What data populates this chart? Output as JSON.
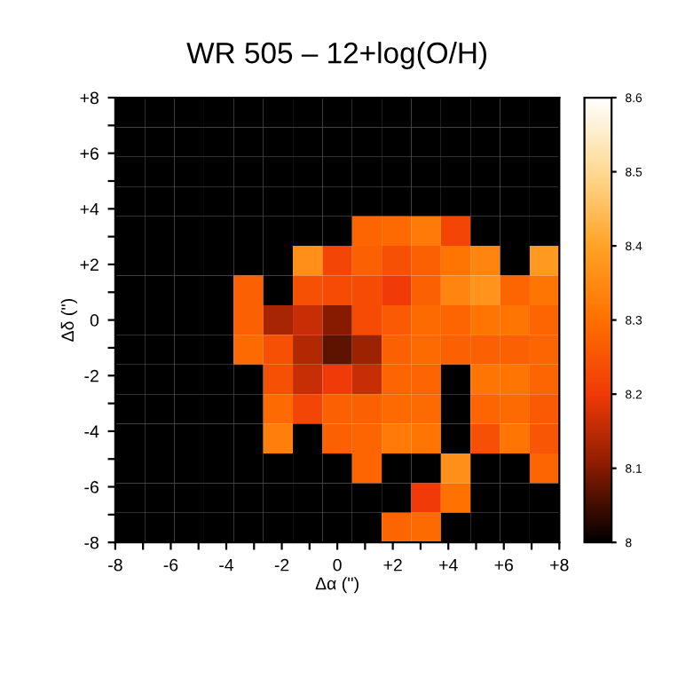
{
  "chart_data": {
    "type": "heatmap",
    "title": "WR 505 – 12+log(O/H)",
    "xlabel": "Δα ('')",
    "ylabel": "Δδ ('')",
    "xlim": [
      -8,
      8
    ],
    "ylim": [
      -8,
      8
    ],
    "xticks": [
      {
        "value": -8,
        "label": "-8"
      },
      {
        "value": -7,
        "label": null
      },
      {
        "value": -6,
        "label": "-6"
      },
      {
        "value": -5,
        "label": null
      },
      {
        "value": -4,
        "label": "-4"
      },
      {
        "value": -3,
        "label": null
      },
      {
        "value": -2,
        "label": "-2"
      },
      {
        "value": -1,
        "label": null
      },
      0,
      {
        "value": 1,
        "label": null
      },
      {
        "value": 2,
        "label": "+2"
      },
      {
        "value": 3,
        "label": null
      },
      {
        "value": 4,
        "label": "+4"
      },
      {
        "value": 5,
        "label": null
      },
      {
        "value": 6,
        "label": "+6"
      },
      {
        "value": 7,
        "label": null
      },
      {
        "value": 8,
        "label": "+8"
      }
    ],
    "yticks": [
      {
        "value": -8,
        "label": "-8"
      },
      {
        "value": -7,
        "label": null
      },
      {
        "value": -6,
        "label": "-6"
      },
      {
        "value": -5,
        "label": null
      },
      {
        "value": -4,
        "label": "-4"
      },
      {
        "value": -3,
        "label": null
      },
      {
        "value": -2,
        "label": "-2"
      },
      {
        "value": -1,
        "label": null
      },
      0,
      {
        "value": 1,
        "label": null
      },
      {
        "value": 2,
        "label": "+2"
      },
      {
        "value": 3,
        "label": null
      },
      {
        "value": 4,
        "label": "+4"
      },
      {
        "value": 5,
        "label": null
      },
      {
        "value": 6,
        "label": "+6"
      },
      {
        "value": 7,
        "label": null
      },
      {
        "value": 8,
        "label": "+8"
      }
    ],
    "clim": [
      8.0,
      8.6
    ],
    "cticks": [
      8,
      8.1,
      8.2,
      8.3,
      8.4,
      8.5,
      8.6
    ],
    "cells": [
      [
        8,
        8,
        8,
        8,
        8,
        8,
        8,
        8,
        8,
        8,
        8,
        8,
        8,
        8,
        8
      ],
      [
        8,
        8,
        8,
        8,
        8,
        8,
        8,
        8,
        8,
        8,
        8,
        8,
        8,
        8,
        8
      ],
      [
        8,
        8,
        8,
        8,
        8,
        8,
        8,
        8,
        8,
        8,
        8,
        8,
        8,
        8,
        8
      ],
      [
        8,
        8,
        8,
        8,
        8,
        8,
        8,
        8,
        8,
        8,
        8,
        8,
        8,
        8,
        8
      ],
      [
        8,
        8,
        8,
        8,
        8,
        8,
        8,
        8,
        8.28,
        8.29,
        8.32,
        8.22,
        8,
        8,
        8
      ],
      [
        8,
        8,
        8,
        8,
        8,
        8,
        8.36,
        8.22,
        8.27,
        8.24,
        8.27,
        8.31,
        8.34,
        8,
        8.38
      ],
      [
        8,
        8,
        8,
        8,
        8.27,
        8,
        8.24,
        8.23,
        8.23,
        8.2,
        8.27,
        8.34,
        8.37,
        8.28,
        8.31
      ],
      [
        8,
        8,
        8,
        8,
        8.27,
        8.13,
        8.16,
        8.1,
        8.23,
        8.26,
        8.29,
        8.28,
        8.31,
        8.31,
        8.28
      ],
      [
        8,
        8,
        8,
        8,
        8.29,
        8.24,
        8.14,
        8.07,
        8.12,
        8.27,
        8.29,
        8.27,
        8.27,
        8.27,
        8.28
      ],
      [
        8,
        8,
        8,
        8,
        8,
        8.24,
        8.16,
        8.2,
        8.16,
        8.28,
        8.28,
        8,
        8.31,
        8.31,
        8.28
      ],
      [
        8,
        8,
        8,
        8,
        8,
        8.29,
        8.22,
        8.27,
        8.27,
        8.29,
        8.29,
        8,
        8.28,
        8.29,
        8.26
      ],
      [
        8,
        8,
        8,
        8,
        8,
        8.33,
        8,
        8.27,
        8.28,
        8.32,
        8.31,
        8,
        8.24,
        8.31,
        8.25
      ],
      [
        8,
        8,
        8,
        8,
        8,
        8,
        8,
        8,
        8.28,
        8,
        8,
        8.36,
        8,
        8,
        8.28
      ],
      [
        8,
        8,
        8,
        8,
        8,
        8,
        8,
        8,
        8,
        8,
        8.2,
        8.3,
        8,
        8,
        8
      ],
      [
        8,
        8,
        8,
        8,
        8,
        8,
        8,
        8,
        8,
        8.28,
        8.29,
        8,
        8,
        8,
        8
      ]
    ]
  }
}
